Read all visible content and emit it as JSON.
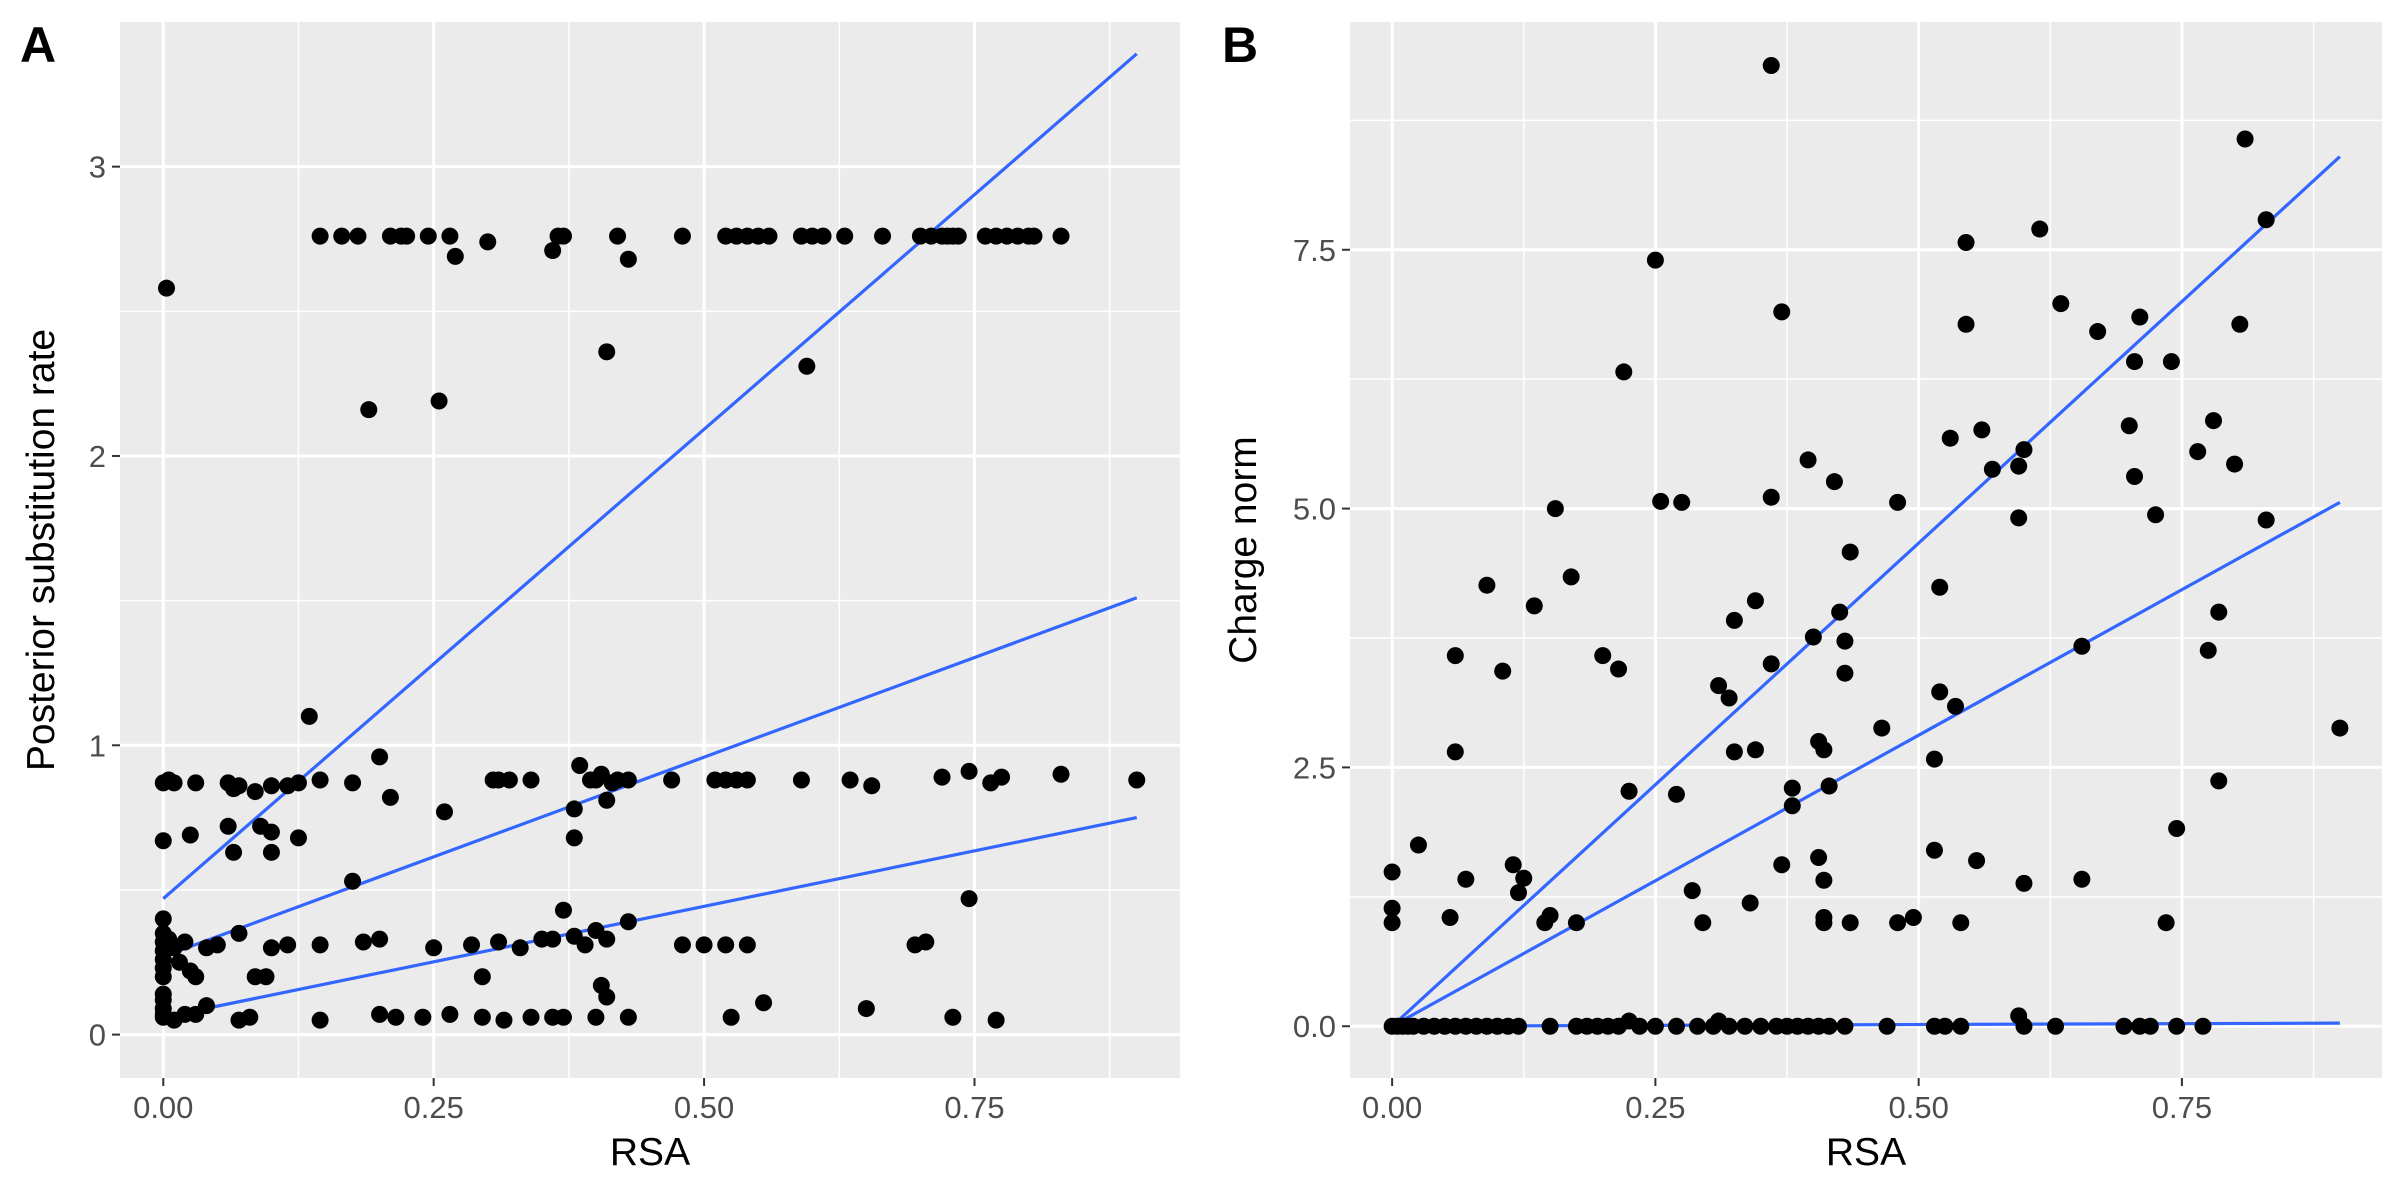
{
  "chart_data": [
    {
      "panel": "A",
      "type": "scatter",
      "xlabel": "RSA",
      "ylabel": "Posterior substitution rate",
      "xlim": [
        -0.04,
        0.94
      ],
      "ylim": [
        -0.15,
        3.5
      ],
      "x_ticks": [
        0.0,
        0.25,
        0.5,
        0.75
      ],
      "x_tick_labels": [
        "0.00",
        "0.25",
        "0.50",
        "0.75"
      ],
      "y_ticks": [
        0,
        1,
        2,
        3
      ],
      "y_tick_labels": [
        "0",
        "1",
        "2",
        "3"
      ],
      "grid": true,
      "point_color": "#000000",
      "line_color": "#3366ff",
      "points": [
        [
          0.003,
          2.58
        ],
        [
          0.0,
          0.87
        ],
        [
          0.005,
          0.88
        ],
        [
          0.01,
          0.87
        ],
        [
          0.0,
          0.67
        ],
        [
          0.025,
          0.69
        ],
        [
          0.03,
          0.87
        ],
        [
          0.06,
          0.87
        ],
        [
          0.065,
          0.85
        ],
        [
          0.07,
          0.86
        ],
        [
          0.085,
          0.84
        ],
        [
          0.1,
          0.86
        ],
        [
          0.115,
          0.86
        ],
        [
          0.125,
          0.87
        ],
        [
          0.06,
          0.72
        ],
        [
          0.09,
          0.72
        ],
        [
          0.1,
          0.7
        ],
        [
          0.125,
          0.68
        ],
        [
          0.065,
          0.63
        ],
        [
          0.1,
          0.63
        ],
        [
          0.135,
          1.1
        ],
        [
          0.145,
          0.88
        ],
        [
          0.175,
          0.87
        ],
        [
          0.2,
          0.96
        ],
        [
          0.21,
          0.82
        ],
        [
          0.26,
          0.77
        ],
        [
          0.175,
          0.53
        ],
        [
          0.145,
          2.76
        ],
        [
          0.165,
          2.76
        ],
        [
          0.18,
          2.76
        ],
        [
          0.21,
          2.76
        ],
        [
          0.22,
          2.76
        ],
        [
          0.225,
          2.76
        ],
        [
          0.245,
          2.76
        ],
        [
          0.265,
          2.76
        ],
        [
          0.27,
          2.69
        ],
        [
          0.3,
          2.74
        ],
        [
          0.36,
          2.71
        ],
        [
          0.365,
          2.76
        ],
        [
          0.37,
          2.76
        ],
        [
          0.42,
          2.76
        ],
        [
          0.43,
          2.68
        ],
        [
          0.48,
          2.76
        ],
        [
          0.52,
          2.76
        ],
        [
          0.53,
          2.76
        ],
        [
          0.54,
          2.76
        ],
        [
          0.55,
          2.76
        ],
        [
          0.56,
          2.76
        ],
        [
          0.59,
          2.76
        ],
        [
          0.6,
          2.76
        ],
        [
          0.61,
          2.76
        ],
        [
          0.63,
          2.76
        ],
        [
          0.665,
          2.76
        ],
        [
          0.7,
          2.76
        ],
        [
          0.71,
          2.76
        ],
        [
          0.72,
          2.76
        ],
        [
          0.725,
          2.76
        ],
        [
          0.73,
          2.76
        ],
        [
          0.735,
          2.76
        ],
        [
          0.76,
          2.76
        ],
        [
          0.77,
          2.76
        ],
        [
          0.78,
          2.76
        ],
        [
          0.79,
          2.76
        ],
        [
          0.8,
          2.76
        ],
        [
          0.805,
          2.76
        ],
        [
          0.83,
          2.76
        ],
        [
          0.19,
          2.16
        ],
        [
          0.255,
          2.19
        ],
        [
          0.41,
          2.36
        ],
        [
          0.595,
          2.31
        ],
        [
          0.305,
          0.88
        ],
        [
          0.31,
          0.88
        ],
        [
          0.32,
          0.88
        ],
        [
          0.34,
          0.88
        ],
        [
          0.38,
          0.78
        ],
        [
          0.385,
          0.93
        ],
        [
          0.395,
          0.88
        ],
        [
          0.4,
          0.88
        ],
        [
          0.405,
          0.9
        ],
        [
          0.41,
          0.81
        ],
        [
          0.415,
          0.87
        ],
        [
          0.42,
          0.88
        ],
        [
          0.43,
          0.88
        ],
        [
          0.47,
          0.88
        ],
        [
          0.51,
          0.88
        ],
        [
          0.52,
          0.88
        ],
        [
          0.53,
          0.88
        ],
        [
          0.54,
          0.88
        ],
        [
          0.59,
          0.88
        ],
        [
          0.635,
          0.88
        ],
        [
          0.655,
          0.86
        ],
        [
          0.72,
          0.89
        ],
        [
          0.745,
          0.91
        ],
        [
          0.765,
          0.87
        ],
        [
          0.775,
          0.89
        ],
        [
          0.83,
          0.9
        ],
        [
          0.9,
          0.88
        ],
        [
          0.38,
          0.68
        ],
        [
          0.0,
          0.4
        ],
        [
          0.0,
          0.35
        ],
        [
          0.0,
          0.32
        ],
        [
          0.0,
          0.29
        ],
        [
          0.0,
          0.26
        ],
        [
          0.0,
          0.23
        ],
        [
          0.0,
          0.2
        ],
        [
          0.0,
          0.14
        ],
        [
          0.0,
          0.12
        ],
        [
          0.0,
          0.09
        ],
        [
          0.0,
          0.07
        ],
        [
          0.005,
          0.33
        ],
        [
          0.01,
          0.3
        ],
        [
          0.015,
          0.25
        ],
        [
          0.02,
          0.32
        ],
        [
          0.025,
          0.22
        ],
        [
          0.03,
          0.2
        ],
        [
          0.04,
          0.3
        ],
        [
          0.05,
          0.31
        ],
        [
          0.07,
          0.35
        ],
        [
          0.085,
          0.2
        ],
        [
          0.095,
          0.2
        ],
        [
          0.1,
          0.3
        ],
        [
          0.115,
          0.31
        ],
        [
          0.145,
          0.31
        ],
        [
          0.185,
          0.32
        ],
        [
          0.2,
          0.33
        ],
        [
          0.25,
          0.3
        ],
        [
          0.285,
          0.31
        ],
        [
          0.295,
          0.2
        ],
        [
          0.31,
          0.32
        ],
        [
          0.33,
          0.3
        ],
        [
          0.35,
          0.33
        ],
        [
          0.36,
          0.33
        ],
        [
          0.37,
          0.43
        ],
        [
          0.38,
          0.34
        ],
        [
          0.39,
          0.31
        ],
        [
          0.4,
          0.36
        ],
        [
          0.41,
          0.33
        ],
        [
          0.43,
          0.39
        ],
        [
          0.48,
          0.31
        ],
        [
          0.5,
          0.31
        ],
        [
          0.52,
          0.31
        ],
        [
          0.54,
          0.31
        ],
        [
          0.695,
          0.31
        ],
        [
          0.705,
          0.32
        ],
        [
          0.745,
          0.47
        ],
        [
          0.04,
          0.1
        ],
        [
          0.02,
          0.07
        ],
        [
          0.0,
          0.06
        ],
        [
          0.01,
          0.05
        ],
        [
          0.03,
          0.07
        ],
        [
          0.07,
          0.05
        ],
        [
          0.08,
          0.06
        ],
        [
          0.145,
          0.05
        ],
        [
          0.2,
          0.07
        ],
        [
          0.215,
          0.06
        ],
        [
          0.24,
          0.06
        ],
        [
          0.265,
          0.07
        ],
        [
          0.295,
          0.06
        ],
        [
          0.315,
          0.05
        ],
        [
          0.34,
          0.06
        ],
        [
          0.36,
          0.06
        ],
        [
          0.37,
          0.06
        ],
        [
          0.4,
          0.06
        ],
        [
          0.405,
          0.17
        ],
        [
          0.41,
          0.13
        ],
        [
          0.43,
          0.06
        ],
        [
          0.525,
          0.06
        ],
        [
          0.555,
          0.11
        ],
        [
          0.65,
          0.09
        ],
        [
          0.73,
          0.06
        ],
        [
          0.77,
          0.05
        ]
      ],
      "lines": [
        {
          "x": [
            0.0,
            0.9
          ],
          "y": [
            0.47,
            3.39
          ]
        },
        {
          "x": [
            0.0,
            0.9
          ],
          "y": [
            0.27,
            1.51
          ]
        },
        {
          "x": [
            0.0,
            0.9
          ],
          "y": [
            0.06,
            0.75
          ]
        }
      ]
    },
    {
      "panel": "B",
      "type": "scatter",
      "xlabel": "RSA",
      "ylabel": "Charge norm",
      "xlim": [
        -0.04,
        0.94
      ],
      "ylim": [
        -0.5,
        9.7
      ],
      "x_ticks": [
        0.0,
        0.25,
        0.5,
        0.75
      ],
      "x_tick_labels": [
        "0.00",
        "0.25",
        "0.50",
        "0.75"
      ],
      "y_ticks": [
        0.0,
        2.5,
        5.0,
        7.5
      ],
      "y_tick_labels": [
        "0.0",
        "2.5",
        "5.0",
        "7.5"
      ],
      "grid": true,
      "point_color": "#000000",
      "line_color": "#3366ff",
      "points": [
        [
          0.36,
          9.28
        ],
        [
          0.81,
          8.57
        ],
        [
          0.25,
          7.4
        ],
        [
          0.545,
          7.57
        ],
        [
          0.615,
          7.7
        ],
        [
          0.83,
          7.79
        ],
        [
          0.37,
          6.9
        ],
        [
          0.545,
          6.78
        ],
        [
          0.635,
          6.98
        ],
        [
          0.67,
          6.71
        ],
        [
          0.71,
          6.85
        ],
        [
          0.805,
          6.78
        ],
        [
          0.22,
          6.32
        ],
        [
          0.705,
          6.42
        ],
        [
          0.74,
          6.42
        ],
        [
          0.53,
          5.68
        ],
        [
          0.56,
          5.76
        ],
        [
          0.57,
          5.38
        ],
        [
          0.595,
          5.41
        ],
        [
          0.6,
          5.57
        ],
        [
          0.7,
          5.8
        ],
        [
          0.705,
          5.31
        ],
        [
          0.765,
          5.55
        ],
        [
          0.78,
          5.85
        ],
        [
          0.8,
          5.43
        ],
        [
          0.395,
          5.47
        ],
        [
          0.42,
          5.26
        ],
        [
          0.155,
          5.0
        ],
        [
          0.255,
          5.07
        ],
        [
          0.275,
          5.06
        ],
        [
          0.36,
          5.11
        ],
        [
          0.48,
          5.06
        ],
        [
          0.595,
          4.91
        ],
        [
          0.725,
          4.94
        ],
        [
          0.83,
          4.89
        ],
        [
          0.09,
          4.26
        ],
        [
          0.17,
          4.34
        ],
        [
          0.135,
          4.06
        ],
        [
          0.325,
          3.92
        ],
        [
          0.345,
          4.11
        ],
        [
          0.425,
          4.0
        ],
        [
          0.435,
          4.58
        ],
        [
          0.52,
          4.24
        ],
        [
          0.4,
          3.76
        ],
        [
          0.43,
          3.72
        ],
        [
          0.06,
          3.58
        ],
        [
          0.105,
          3.43
        ],
        [
          0.2,
          3.58
        ],
        [
          0.215,
          3.45
        ],
        [
          0.31,
          3.29
        ],
        [
          0.32,
          3.17
        ],
        [
          0.36,
          3.5
        ],
        [
          0.43,
          3.41
        ],
        [
          0.52,
          3.23
        ],
        [
          0.535,
          3.09
        ],
        [
          0.655,
          3.67
        ],
        [
          0.775,
          3.63
        ],
        [
          0.785,
          4.0
        ],
        [
          0.9,
          2.88
        ],
        [
          0.06,
          2.65
        ],
        [
          0.225,
          2.27
        ],
        [
          0.27,
          2.24
        ],
        [
          0.325,
          2.65
        ],
        [
          0.345,
          2.67
        ],
        [
          0.38,
          2.3
        ],
        [
          0.38,
          2.13
        ],
        [
          0.405,
          2.75
        ],
        [
          0.41,
          2.67
        ],
        [
          0.415,
          2.32
        ],
        [
          0.465,
          2.88
        ],
        [
          0.515,
          2.58
        ],
        [
          0.745,
          1.91
        ],
        [
          0.785,
          2.37
        ],
        [
          0.0,
          1.49
        ],
        [
          0.025,
          1.75
        ],
        [
          0.0,
          1.14
        ],
        [
          0.0,
          1.0
        ],
        [
          0.055,
          1.05
        ],
        [
          0.07,
          1.42
        ],
        [
          0.115,
          1.56
        ],
        [
          0.12,
          1.29
        ],
        [
          0.125,
          1.43
        ],
        [
          0.145,
          1.0
        ],
        [
          0.15,
          1.07
        ],
        [
          0.175,
          1.0
        ],
        [
          0.285,
          1.31
        ],
        [
          0.295,
          1.0
        ],
        [
          0.34,
          1.19
        ],
        [
          0.37,
          1.56
        ],
        [
          0.405,
          1.63
        ],
        [
          0.41,
          1.41
        ],
        [
          0.41,
          1.05
        ],
        [
          0.41,
          1.0
        ],
        [
          0.435,
          1.0
        ],
        [
          0.48,
          1.0
        ],
        [
          0.495,
          1.05
        ],
        [
          0.515,
          1.7
        ],
        [
          0.54,
          1.0
        ],
        [
          0.555,
          1.6
        ],
        [
          0.6,
          1.38
        ],
        [
          0.655,
          1.42
        ],
        [
          0.735,
          1.0
        ],
        [
          0.0,
          0.0
        ],
        [
          0.005,
          0.0
        ],
        [
          0.01,
          0.0
        ],
        [
          0.015,
          0.0
        ],
        [
          0.02,
          0.0
        ],
        [
          0.03,
          0.0
        ],
        [
          0.04,
          0.0
        ],
        [
          0.05,
          0.0
        ],
        [
          0.06,
          0.0
        ],
        [
          0.07,
          0.0
        ],
        [
          0.08,
          0.0
        ],
        [
          0.09,
          0.0
        ],
        [
          0.1,
          0.0
        ],
        [
          0.11,
          0.0
        ],
        [
          0.12,
          0.0
        ],
        [
          0.15,
          0.0
        ],
        [
          0.175,
          0.0
        ],
        [
          0.185,
          0.0
        ],
        [
          0.195,
          0.0
        ],
        [
          0.205,
          0.0
        ],
        [
          0.215,
          0.0
        ],
        [
          0.225,
          0.05
        ],
        [
          0.235,
          0.0
        ],
        [
          0.25,
          0.0
        ],
        [
          0.27,
          0.0
        ],
        [
          0.29,
          0.0
        ],
        [
          0.305,
          0.0
        ],
        [
          0.31,
          0.05
        ],
        [
          0.32,
          0.0
        ],
        [
          0.335,
          0.0
        ],
        [
          0.35,
          0.0
        ],
        [
          0.365,
          0.0
        ],
        [
          0.375,
          0.0
        ],
        [
          0.385,
          0.0
        ],
        [
          0.395,
          0.0
        ],
        [
          0.405,
          0.0
        ],
        [
          0.415,
          0.0
        ],
        [
          0.43,
          0.0
        ],
        [
          0.47,
          0.0
        ],
        [
          0.515,
          0.0
        ],
        [
          0.525,
          0.0
        ],
        [
          0.54,
          0.0
        ],
        [
          0.595,
          0.1
        ],
        [
          0.6,
          0.0
        ],
        [
          0.63,
          0.0
        ],
        [
          0.695,
          0.0
        ],
        [
          0.71,
          0.0
        ],
        [
          0.72,
          0.0
        ],
        [
          0.745,
          0.0
        ],
        [
          0.77,
          0.0
        ]
      ],
      "lines": [
        {
          "x": [
            0.0,
            0.9
          ],
          "y": [
            0.0,
            8.4
          ]
        },
        {
          "x": [
            0.0,
            0.9
          ],
          "y": [
            0.0,
            5.06
          ]
        },
        {
          "x": [
            0.0,
            0.9
          ],
          "y": [
            0.0,
            0.03
          ]
        }
      ]
    }
  ]
}
